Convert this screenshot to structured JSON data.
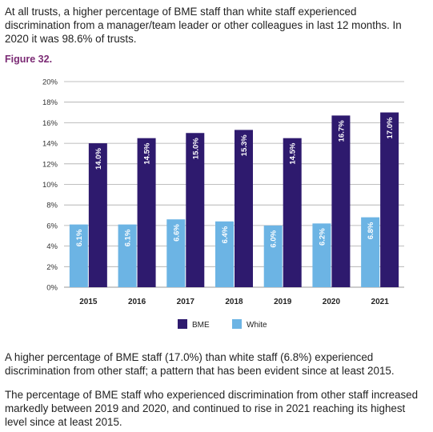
{
  "intro_lines": [
    "At all trusts, a higher percentage of BME staff than white staff experienced",
    "discrimination from a manager/team leader or other colleagues in last 12 months. In",
    "2020 it was 98.6% of trusts."
  ],
  "figure_label": "Figure 32.",
  "chart_data": {
    "type": "bar",
    "categories": [
      "2015",
      "2016",
      "2017",
      "2018",
      "2019",
      "2020",
      "2021"
    ],
    "series": [
      {
        "name": "White",
        "color": "#6cb4e4",
        "values": [
          6.1,
          6.1,
          6.6,
          6.4,
          6.0,
          6.2,
          6.8
        ],
        "value_labels": [
          "6.1%",
          "6.1%",
          "6.6%",
          "6.4%",
          "6.0%",
          "6.2%",
          "6.8%"
        ]
      },
      {
        "name": "BME",
        "color": "#2e1a6e",
        "values": [
          14.0,
          14.5,
          15.0,
          15.3,
          14.5,
          16.7,
          17.0
        ],
        "value_labels": [
          "14.0%",
          "14.5%",
          "15.0%",
          "15.3%",
          "14.5%",
          "16.7%",
          "17.0%"
        ]
      }
    ],
    "ylim": [
      0,
      20
    ],
    "yticks": [
      {
        "value": 0,
        "label": "0%"
      },
      {
        "value": 2,
        "label": "2%"
      },
      {
        "value": 4,
        "label": "4%"
      },
      {
        "value": 6,
        "label": "6%"
      },
      {
        "value": 8,
        "label": "8%"
      },
      {
        "value": 10,
        "label": "10%"
      },
      {
        "value": 12,
        "label": "12%"
      },
      {
        "value": 14,
        "label": "14%"
      },
      {
        "value": 16,
        "label": "16%"
      },
      {
        "value": 18,
        "label": "18%"
      },
      {
        "value": 20,
        "label": "20%"
      }
    ],
    "grid": true
  },
  "body_paragraphs": [
    [
      "A higher percentage of BME staff (17.0%) than white staff (6.8%) experienced",
      "discrimination from other staff; a pattern that has been evident since at least 2015."
    ],
    [
      "The percentage of BME staff who experienced discrimination from other staff increased",
      "markedly between 2019 and 2020, and continued to rise in 2021 reaching its highest",
      "level since at least 2015."
    ]
  ]
}
